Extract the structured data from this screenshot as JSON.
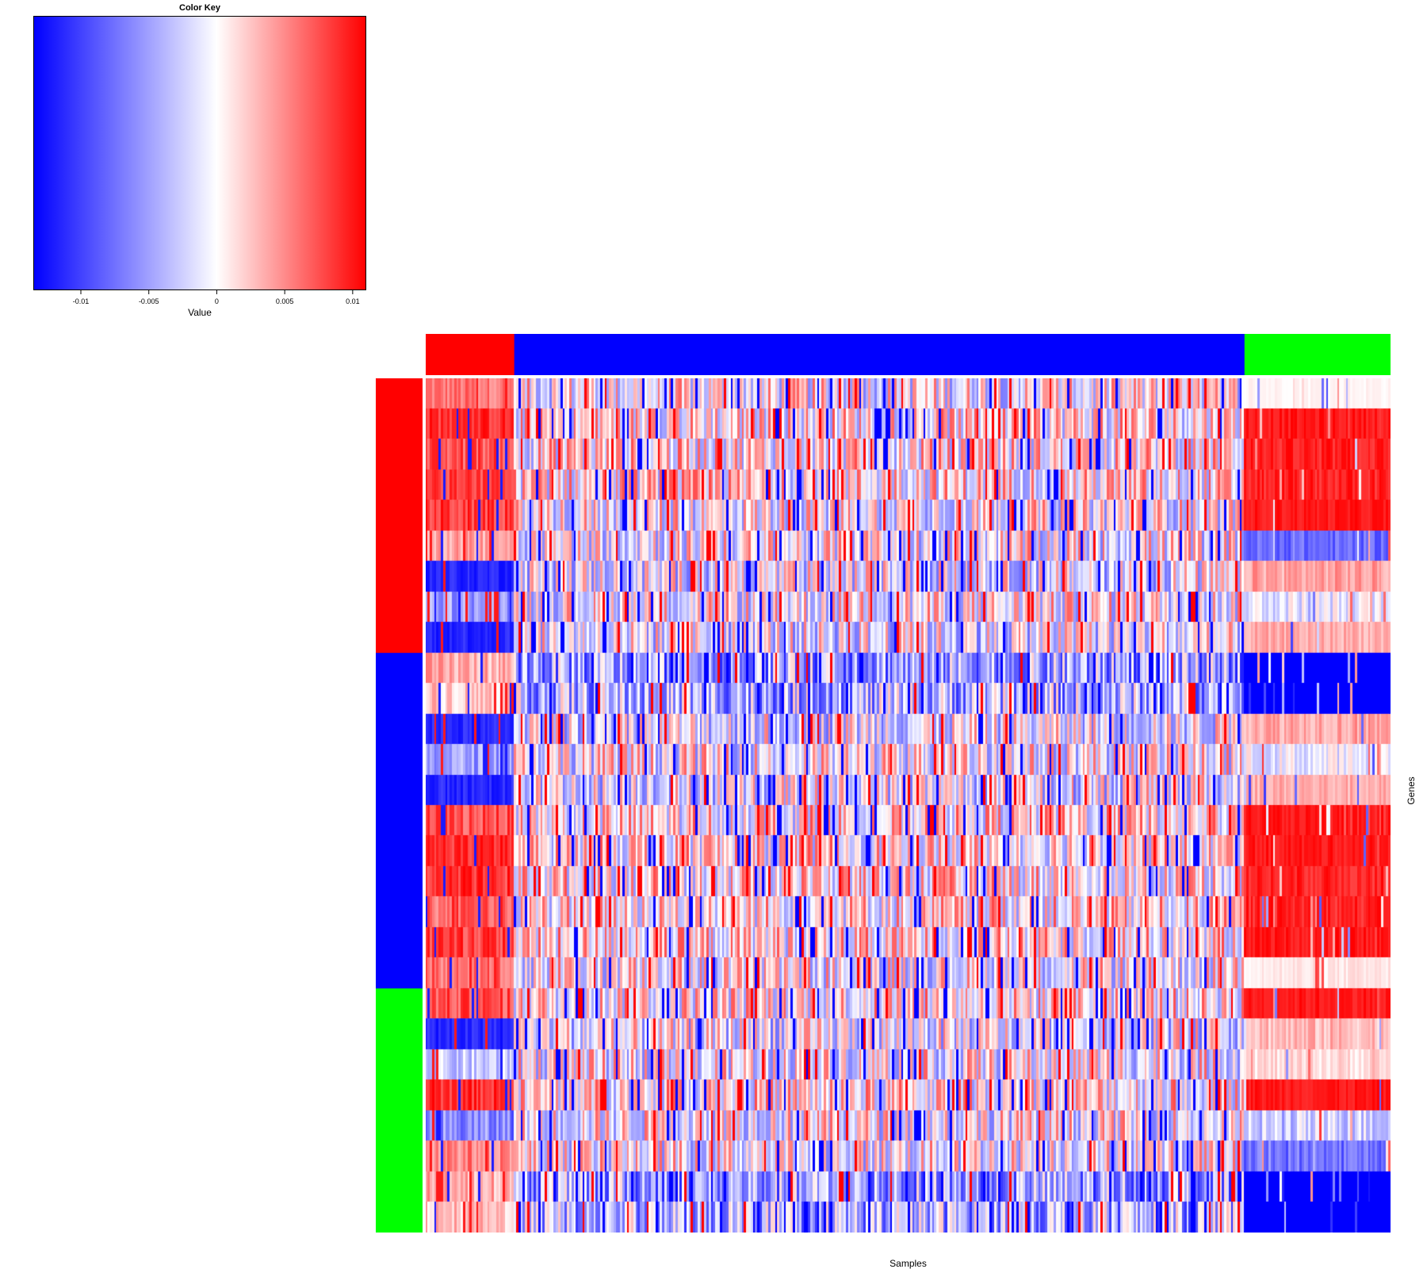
{
  "chart_data": {
    "type": "heatmap",
    "title": "",
    "xlabel": "Samples",
    "ylabel": "Genes",
    "color_key": {
      "title": "Color Key",
      "xlabel": "Value",
      "range": [
        -0.0135,
        0.011
      ],
      "ticks": [
        -0.01,
        -0.005,
        0,
        0.005,
        0.01
      ],
      "tick_labels": [
        "-0.01",
        "-0.005",
        "0",
        "0.005",
        "0.01"
      ],
      "colors": [
        "#0000ff",
        "#ffffff",
        "#ff0000"
      ]
    },
    "column_groups": [
      {
        "color": "#ff0000",
        "count": 40
      },
      {
        "color": "#0000ff",
        "count": 330
      },
      {
        "color": "#00ff00",
        "count": 66
      }
    ],
    "row_groups": [
      {
        "color": "#ff0000",
        "count": 9
      },
      {
        "color": "#0000ff",
        "count": 11
      },
      {
        "color": "#00ff00",
        "count": 8
      }
    ],
    "column_count": 436,
    "row_count": 28,
    "rows": [
      {
        "block": [
          0.004,
          0.008
        ],
        "mid": 0.0,
        "green": [
          0.0,
          0.001
        ]
      },
      {
        "block": [
          0.007,
          0.011
        ],
        "mid": 0.001,
        "green": [
          0.009,
          0.011
        ]
      },
      {
        "block": [
          0.005,
          0.01
        ],
        "mid": 0.001,
        "green": [
          0.008,
          0.011
        ]
      },
      {
        "block": [
          0.006,
          0.01
        ],
        "mid": 0.001,
        "green": [
          0.008,
          0.011
        ]
      },
      {
        "block": [
          0.006,
          0.011
        ],
        "mid": 0.0,
        "green": [
          0.009,
          0.011
        ]
      },
      {
        "block": [
          0.002,
          0.006
        ],
        "mid": 0.0,
        "green": [
          -0.01,
          -0.006
        ]
      },
      {
        "block": [
          -0.013,
          -0.01
        ],
        "mid": -0.001,
        "green": [
          0.002,
          0.006
        ]
      },
      {
        "block": [
          -0.008,
          -0.002
        ],
        "mid": 0.0,
        "green": [
          -0.004,
          0.002
        ]
      },
      {
        "block": [
          -0.013,
          -0.01
        ],
        "mid": -0.001,
        "green": [
          0.002,
          0.005
        ]
      },
      {
        "block": [
          0.001,
          0.006
        ],
        "mid": -0.005,
        "green": [
          -0.0135,
          -0.0135
        ]
      },
      {
        "block": [
          0.0,
          0.005
        ],
        "mid": -0.004,
        "green": [
          -0.0135,
          -0.0135
        ]
      },
      {
        "block": [
          -0.013,
          -0.01
        ],
        "mid": -0.001,
        "green": [
          0.002,
          0.006
        ]
      },
      {
        "block": [
          -0.008,
          -0.002
        ],
        "mid": 0.0,
        "green": [
          -0.004,
          0.002
        ]
      },
      {
        "block": [
          -0.013,
          -0.01
        ],
        "mid": -0.001,
        "green": [
          0.002,
          0.005
        ]
      },
      {
        "block": [
          0.005,
          0.01
        ],
        "mid": 0.001,
        "green": [
          0.009,
          0.011
        ]
      },
      {
        "block": [
          0.007,
          0.011
        ],
        "mid": 0.001,
        "green": [
          0.009,
          0.011
        ]
      },
      {
        "block": [
          0.006,
          0.011
        ],
        "mid": 0.001,
        "green": [
          0.008,
          0.011
        ]
      },
      {
        "block": [
          0.004,
          0.009
        ],
        "mid": 0.001,
        "green": [
          0.008,
          0.011
        ]
      },
      {
        "block": [
          0.006,
          0.011
        ],
        "mid": 0.001,
        "green": [
          0.009,
          0.011
        ]
      },
      {
        "block": [
          0.004,
          0.009
        ],
        "mid": 0.0,
        "green": [
          0.0,
          0.002
        ]
      },
      {
        "block": [
          0.005,
          0.01
        ],
        "mid": 0.001,
        "green": [
          0.009,
          0.011
        ]
      },
      {
        "block": [
          -0.013,
          -0.01
        ],
        "mid": -0.001,
        "green": [
          0.001,
          0.005
        ]
      },
      {
        "block": [
          -0.006,
          0.0
        ],
        "mid": 0.0,
        "green": [
          0.0,
          0.003
        ]
      },
      {
        "block": [
          0.007,
          0.011
        ],
        "mid": 0.001,
        "green": [
          0.009,
          0.011
        ]
      },
      {
        "block": [
          -0.01,
          -0.003
        ],
        "mid": 0.0,
        "green": [
          -0.006,
          0.001
        ]
      },
      {
        "block": [
          0.003,
          0.008
        ],
        "mid": 0.0,
        "green": [
          -0.01,
          -0.005
        ]
      },
      {
        "block": [
          0.001,
          0.006
        ],
        "mid": -0.005,
        "green": [
          -0.0135,
          -0.0135
        ]
      },
      {
        "block": [
          0.0,
          0.005
        ],
        "mid": -0.004,
        "green": [
          -0.0135,
          -0.0135
        ]
      }
    ]
  }
}
